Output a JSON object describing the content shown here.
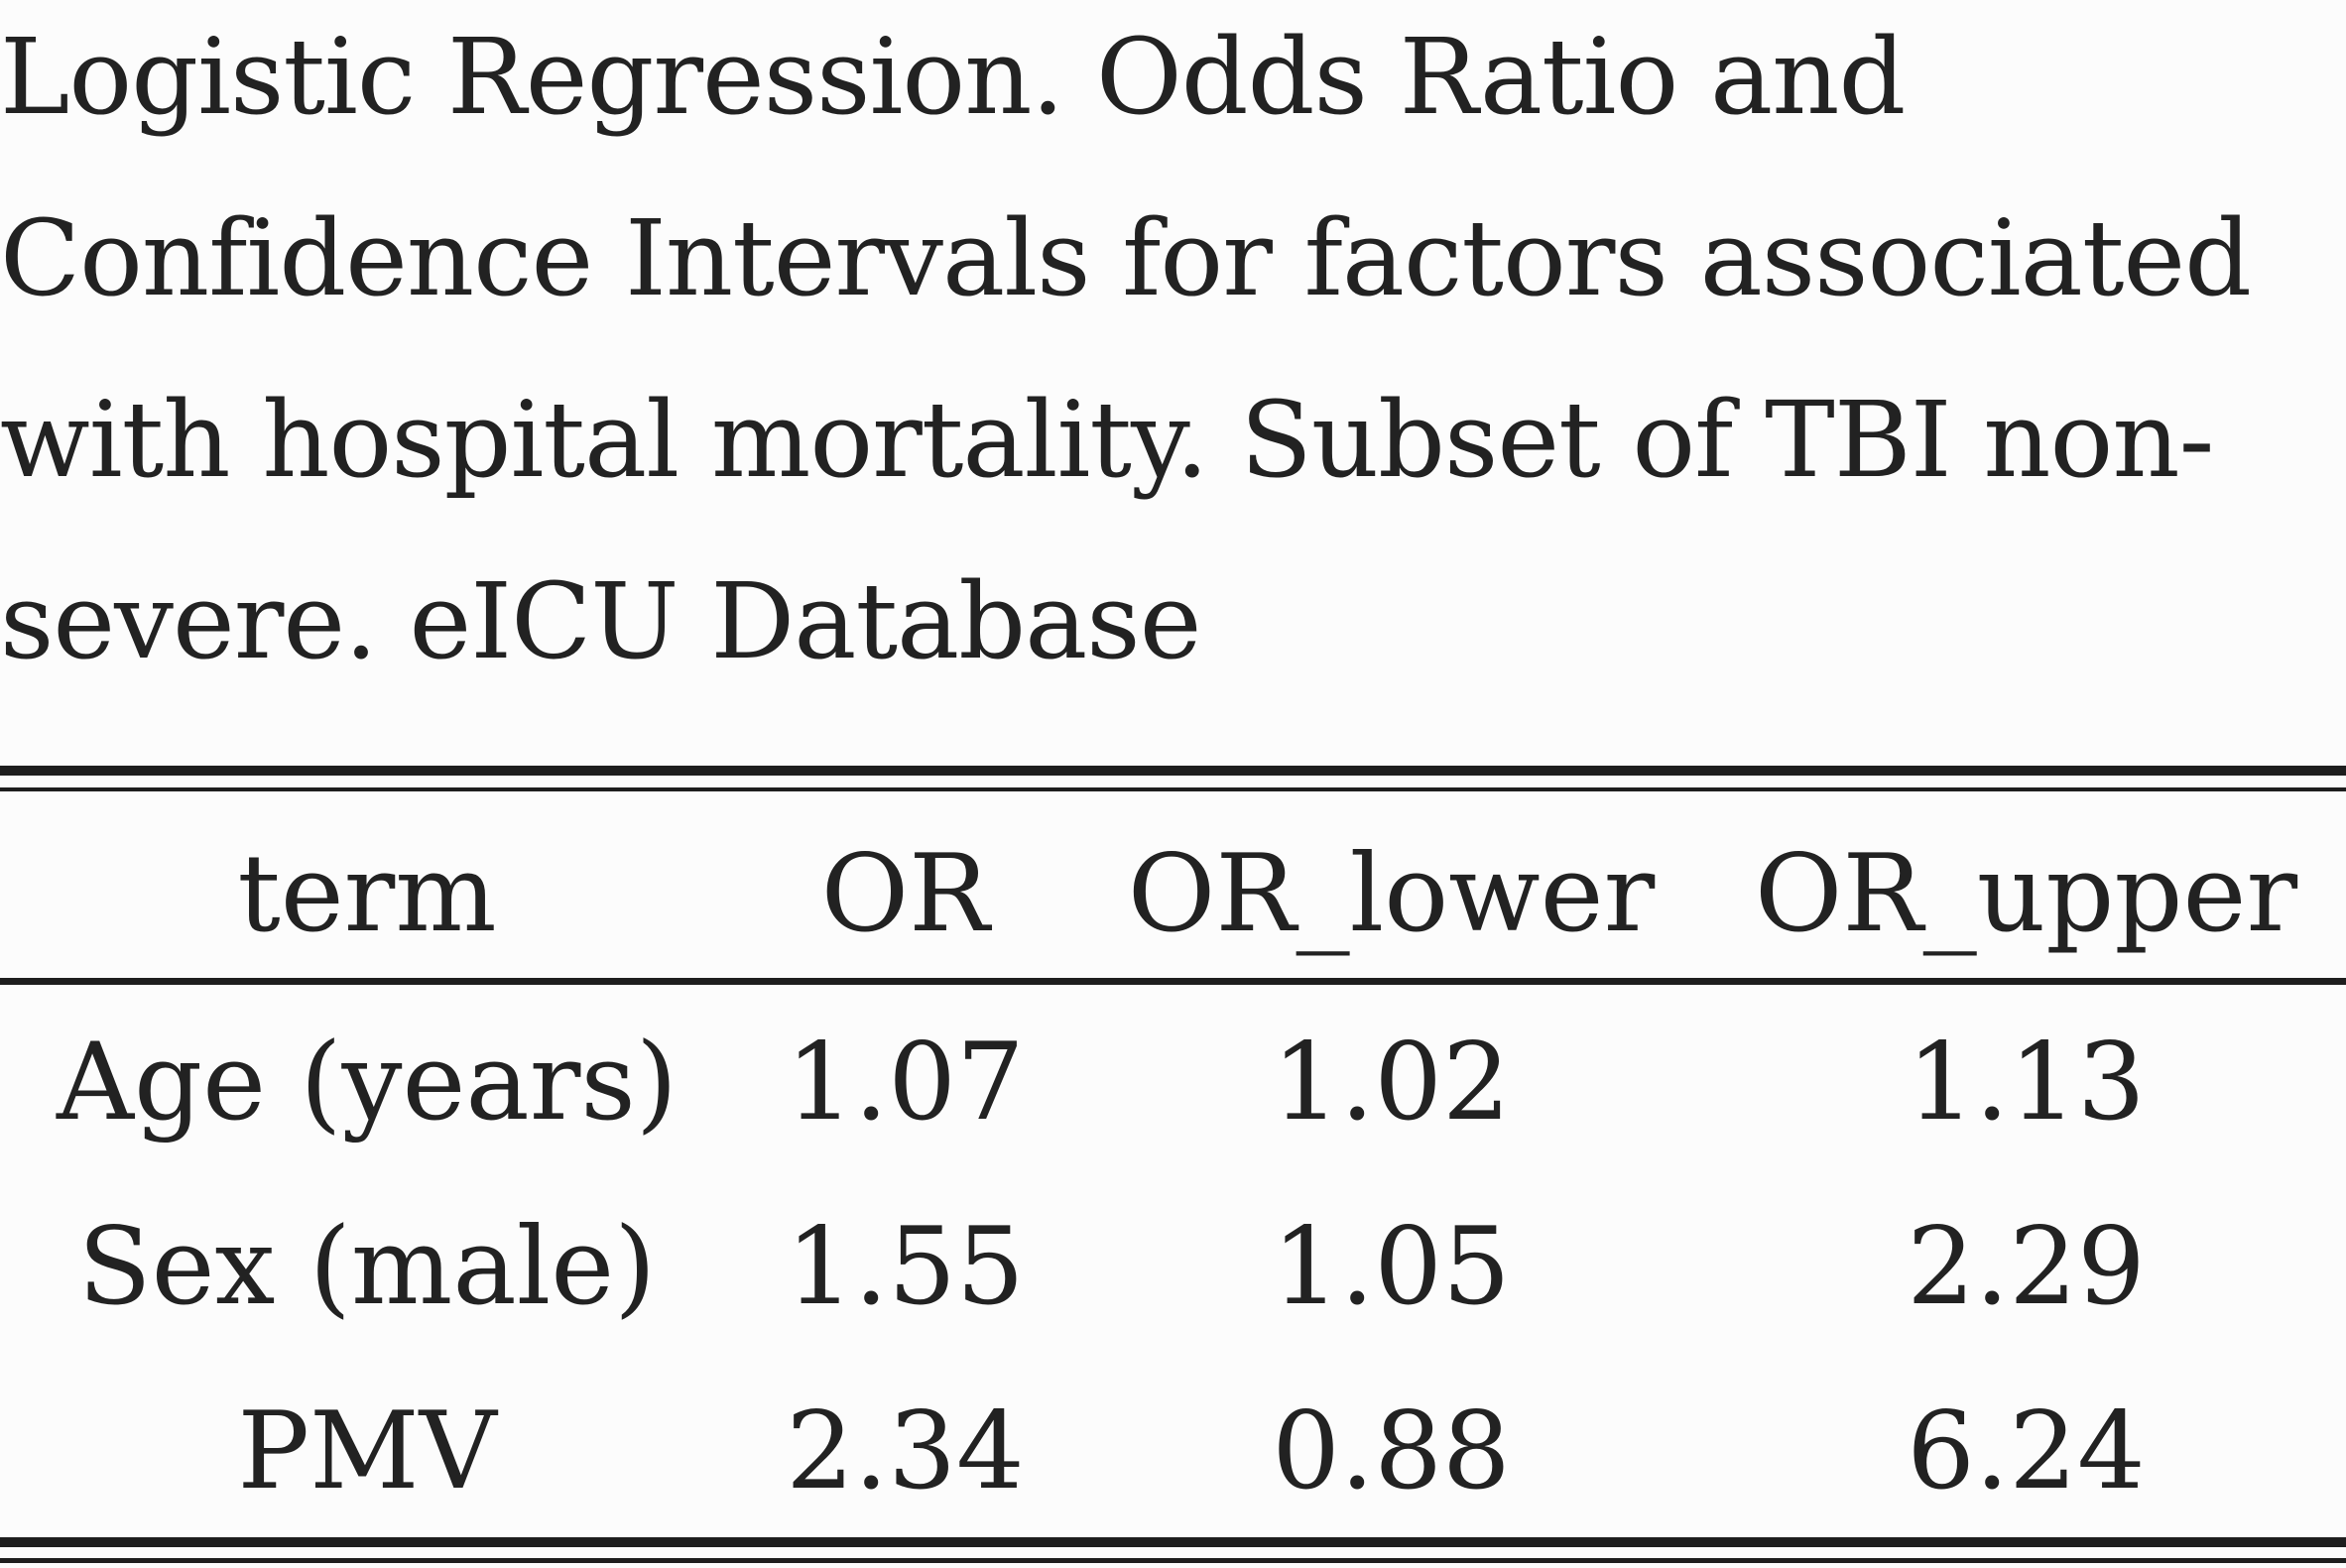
{
  "caption_lines": [
    "Logistic Regression. Odds Ratio and",
    "Confidence Intervals for factors associated",
    "with hospital mortality. Subset of TBI non-",
    "severe. eICU Database"
  ],
  "table": {
    "headers": [
      "term",
      "OR",
      "OR_lower",
      "OR_upper"
    ],
    "rows": [
      [
        "Age (years)",
        "1.07",
        "1.02",
        "1.13"
      ],
      [
        "Sex (male)",
        "1.55",
        "1.05",
        "2.29"
      ],
      [
        "PMV",
        "2.34",
        "0.88",
        "6.24"
      ]
    ]
  }
}
